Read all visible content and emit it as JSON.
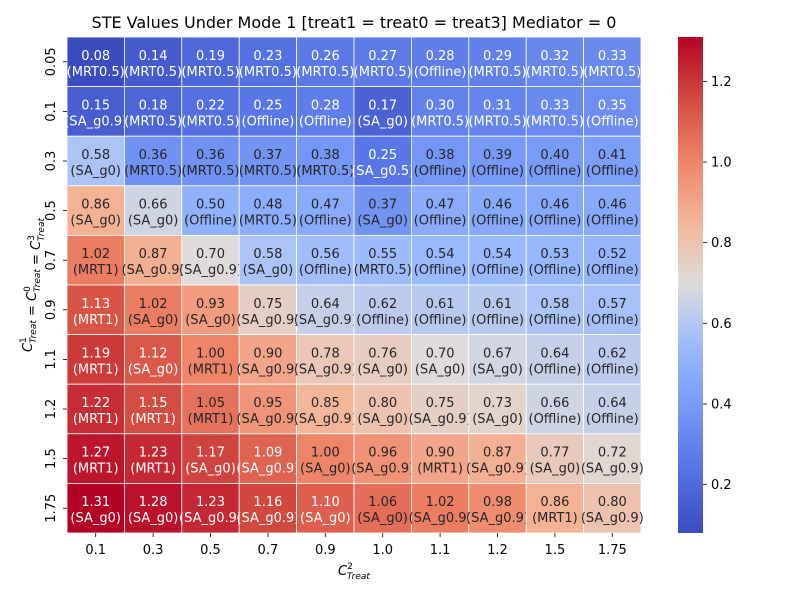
{
  "chart_data": {
    "type": "heatmap",
    "title": "STE Values Under Mode 1 [treat1 = treat0 = treat3] Mediator = 0",
    "xlabel": "C^2_Treat",
    "ylabel": "C^1_Treat = C^0_Treat = C^3_Treat",
    "x_categories": [
      "0.1",
      "0.3",
      "0.5",
      "0.7",
      "0.9",
      "1.0",
      "1.1",
      "1.2",
      "1.5",
      "1.75"
    ],
    "y_categories": [
      "0.05",
      "0.1",
      "0.3",
      "0.5",
      "0.7",
      "0.9",
      "1.1",
      "1.2",
      "1.5",
      "1.75"
    ],
    "values": [
      [
        0.08,
        0.14,
        0.19,
        0.23,
        0.26,
        0.27,
        0.28,
        0.29,
        0.32,
        0.33
      ],
      [
        0.15,
        0.18,
        0.22,
        0.25,
        0.28,
        0.17,
        0.3,
        0.31,
        0.33,
        0.35
      ],
      [
        0.58,
        0.36,
        0.36,
        0.37,
        0.38,
        0.25,
        0.38,
        0.39,
        0.4,
        0.41
      ],
      [
        0.86,
        0.66,
        0.5,
        0.48,
        0.47,
        0.37,
        0.47,
        0.46,
        0.46,
        0.46
      ],
      [
        1.02,
        0.87,
        0.7,
        0.58,
        0.56,
        0.55,
        0.54,
        0.54,
        0.53,
        0.52
      ],
      [
        1.13,
        1.02,
        0.93,
        0.75,
        0.64,
        0.62,
        0.61,
        0.61,
        0.58,
        0.57
      ],
      [
        1.19,
        1.12,
        1.0,
        0.9,
        0.78,
        0.76,
        0.7,
        0.67,
        0.64,
        0.62
      ],
      [
        1.22,
        1.15,
        1.05,
        0.95,
        0.85,
        0.8,
        0.75,
        0.73,
        0.66,
        0.64
      ],
      [
        1.27,
        1.23,
        1.17,
        1.09,
        1.0,
        0.96,
        0.9,
        0.87,
        0.77,
        0.72
      ],
      [
        1.31,
        1.28,
        1.23,
        1.16,
        1.1,
        1.06,
        1.02,
        0.98,
        0.86,
        0.8
      ]
    ],
    "labels": [
      [
        "(MRT0.5)",
        "(MRT0.5)",
        "(MRT0.5)",
        "(MRT0.5)",
        "(MRT0.5)",
        "(MRT0.5)",
        "(Offline)",
        "(MRT0.5)",
        "(MRT0.5)",
        "(MRT0.5)"
      ],
      [
        "(SA_g0.9)",
        "(MRT0.5)",
        "(MRT0.5)",
        "(Offline)",
        "(Offline)",
        "(SA_g0)",
        "(MRT0.5)",
        "(MRT0.5)",
        "(MRT0.5)",
        "(Offline)"
      ],
      [
        "(SA_g0)",
        "(MRT0.5)",
        "(MRT0.5)",
        "(MRT0.5)",
        "(MRT0.5)",
        "(SA_g0.5)",
        "(Offline)",
        "(Offline)",
        "(Offline)",
        "(Offline)"
      ],
      [
        "(SA_g0)",
        "(SA_g0)",
        "(Offline)",
        "(MRT0.5)",
        "(Offline)",
        "(SA_g0)",
        "(Offline)",
        "(Offline)",
        "(Offline)",
        "(Offline)"
      ],
      [
        "(MRT1)",
        "(SA_g0.9)",
        "(SA_g0.9)",
        "(SA_g0)",
        "(Offline)",
        "(MRT0.5)",
        "(Offline)",
        "(Offline)",
        "(Offline)",
        "(Offline)"
      ],
      [
        "(MRT1)",
        "(SA_g0)",
        "(SA_g0)",
        "(SA_g0.9)",
        "(SA_g0.9)",
        "(Offline)",
        "(Offline)",
        "(Offline)",
        "(Offline)",
        "(Offline)"
      ],
      [
        "(MRT1)",
        "(SA_g0)",
        "(MRT1)",
        "(SA_g0.9)",
        "(SA_g0.9)",
        "(SA_g0)",
        "(SA_g0)",
        "(SA_g0)",
        "(Offline)",
        "(Offline)"
      ],
      [
        "(MRT1)",
        "(MRT1)",
        "(MRT1)",
        "(SA_g0.9)",
        "(SA_g0.9)",
        "(SA_g0)",
        "(SA_g0.9)",
        "(SA_g0)",
        "(Offline)",
        "(Offline)"
      ],
      [
        "(MRT1)",
        "(MRT1)",
        "(SA_g0)",
        "(SA_g0.9)",
        "(SA_g0)",
        "(SA_g0.9)",
        "(MRT1)",
        "(SA_g0.9)",
        "(SA_g0)",
        "(SA_g0.9)"
      ],
      [
        "(SA_g0)",
        "(SA_g0)",
        "(SA_g0.9)",
        "(SA_g0.9)",
        "(SA_g0)",
        "(SA_g0)",
        "(SA_g0.9)",
        "(SA_g0.9)",
        "(MRT1)",
        "(SA_g0.9)"
      ]
    ],
    "colorbar": {
      "colormap": "coolwarm",
      "vmin": 0.08,
      "vmax": 1.31,
      "ticks": [
        "0.2",
        "0.4",
        "0.6",
        "0.8",
        "1.0",
        "1.2"
      ]
    },
    "colors": {
      "low": "#3b4cc0",
      "mid": "#dddcdc",
      "high": "#b40426",
      "grid": "#ffffff",
      "text_dark": "#262626",
      "text_light": "#ffffff"
    }
  }
}
